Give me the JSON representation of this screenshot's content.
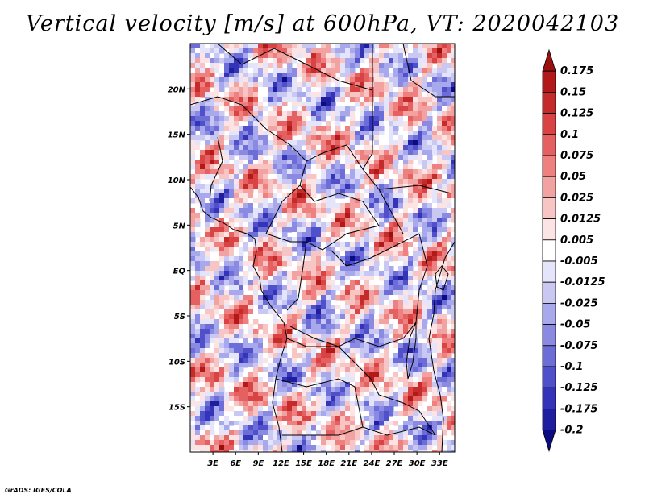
{
  "title": "Vertical velocity [m/s] at 600hPa, VT: 2020042103",
  "credit": "GrADS: IGES/COLA",
  "map": {
    "lon_labels": [
      "3E",
      "6E",
      "9E",
      "12E",
      "15E",
      "18E",
      "21E",
      "24E",
      "27E",
      "30E",
      "33E"
    ],
    "lat_labels": [
      "20N",
      "15N",
      "10N",
      "5N",
      "EQ",
      "5S",
      "10S",
      "15S"
    ],
    "lon_range": [
      0,
      35
    ],
    "lat_range": [
      -20,
      25
    ]
  },
  "colorbar": {
    "levels": [
      "0.175",
      "0.15",
      "0.125",
      "0.1",
      "0.075",
      "0.05",
      "0.025",
      "0.0125",
      "0.005",
      "-0.005",
      "-0.0125",
      "-0.025",
      "-0.05",
      "-0.075",
      "-0.1",
      "-0.125",
      "-0.175",
      "-0.2"
    ],
    "colors": [
      "#9b0f0f",
      "#b21a1a",
      "#c62b2b",
      "#d94343",
      "#e56060",
      "#ee8080",
      "#f3a2a2",
      "#f8c5c5",
      "#fde4e4",
      "#ffffff",
      "#e4e4fb",
      "#c8c8f3",
      "#a8a8ec",
      "#8a8ae3",
      "#6d6dd8",
      "#5050cb",
      "#3434b8",
      "#1e1e9e",
      "#0c0c82"
    ]
  }
}
